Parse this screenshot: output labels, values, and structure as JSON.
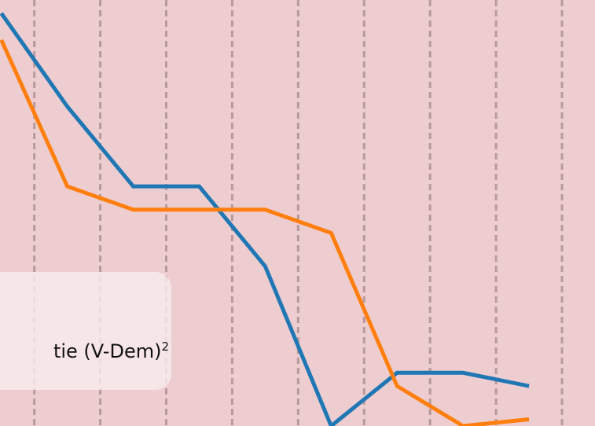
{
  "chart_data": {
    "type": "line",
    "x": [
      0,
      1,
      2,
      3,
      4,
      5,
      6,
      7,
      8
    ],
    "xlim": [
      -0.02,
      9.0
    ],
    "ylim": [
      -0.2,
      6.2
    ],
    "grid": true,
    "series": [
      {
        "color": "#1f77b4",
        "values": [
          6.0,
          4.6,
          3.4,
          3.4,
          2.2,
          -0.2,
          0.6,
          0.6,
          0.4
        ]
      },
      {
        "color": "#ff7f0e",
        "values": [
          5.6,
          3.4,
          3.05,
          3.05,
          3.05,
          2.7,
          0.4,
          -0.2,
          -0.1
        ]
      }
    ],
    "legend": {
      "placement": "bottom-left",
      "label_text": "tie (V-Dem)",
      "label_sup": "2"
    }
  }
}
